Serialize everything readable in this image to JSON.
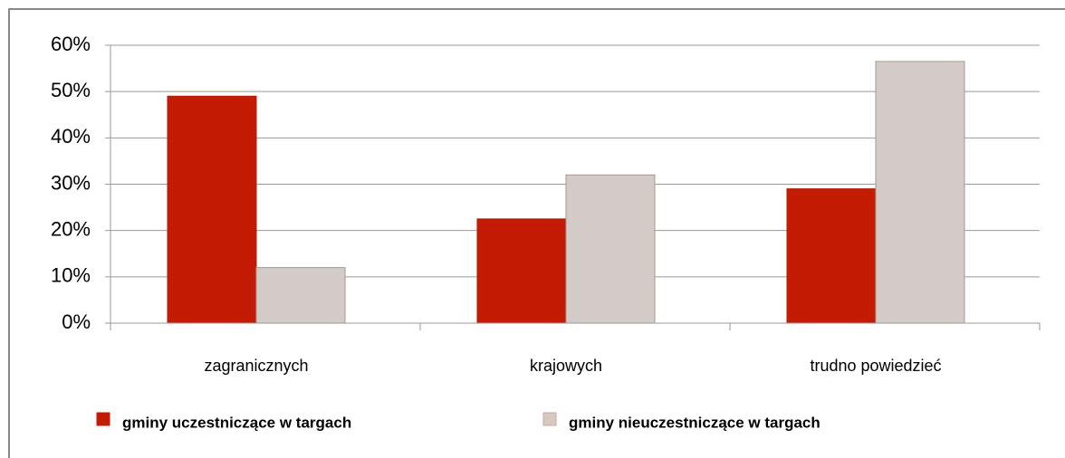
{
  "chart_data": {
    "type": "bar",
    "categories": [
      "zagranicznych",
      "krajowych",
      "trudno powiedzieć"
    ],
    "series": [
      {
        "name": "gminy uczestniczące w targach",
        "color": "#c41c04",
        "values": [
          49,
          22.5,
          29
        ]
      },
      {
        "name": "gminy nieuczestniczące w targach",
        "color": "#d3cbc7",
        "values": [
          12,
          32,
          56.5
        ]
      }
    ],
    "ylim": [
      0,
      60
    ],
    "yticks": [
      {
        "value": 0,
        "label": "0%"
      },
      {
        "value": 10,
        "label": "10%"
      },
      {
        "value": 20,
        "label": "20%"
      },
      {
        "value": 30,
        "label": "30%"
      },
      {
        "value": 40,
        "label": "40%"
      },
      {
        "value": 50,
        "label": "50%"
      },
      {
        "value": 60,
        "label": "60%"
      }
    ],
    "grid": true,
    "legend": "bottom"
  }
}
